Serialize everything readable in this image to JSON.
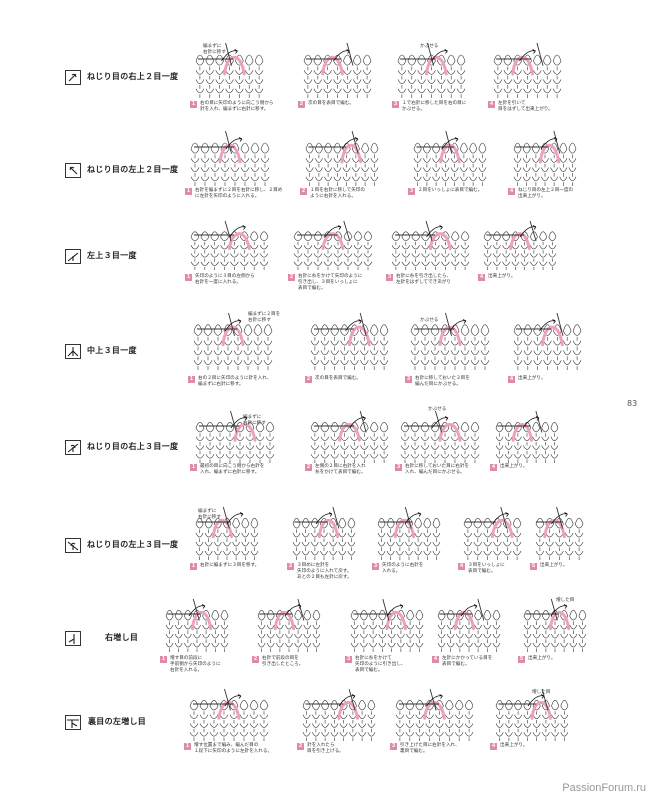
{
  "page_number": "83",
  "watermark": "PassionForum.ru",
  "colors": {
    "accent": "#e08aa9",
    "yarn_pink": "#ef9fc0",
    "line": "#333333"
  },
  "sections": [
    {
      "title": "ねじり目の右上２目一度",
      "symbol": "twisted-right-over-2-tog-symbol",
      "steps": [
        {
          "num": "1",
          "caption": "右の目に矢印のように向こう側から\n針を入れ、編まずに右針に移す。"
        },
        {
          "num": "2",
          "caption": "次の目を表目で編む。"
        },
        {
          "num": "3",
          "caption": "１で右針に移した目を右の目に\nかぶせる。"
        },
        {
          "num": "4",
          "caption": "左針を引いて\n目をはずして出来上がり。"
        }
      ],
      "labels": [
        "編まずに\n右針に移す",
        "かぶせる"
      ]
    },
    {
      "title": "ねじり目の左上２目一度",
      "symbol": "twisted-left-over-2-tog-symbol",
      "steps": [
        {
          "num": "1",
          "caption": "右針を編まずに２目を右針に移し、２目め\nに左針を矢印のように入れる。"
        },
        {
          "num": "2",
          "caption": "１目を右針に移して矢印の\nように右針を入れる。"
        },
        {
          "num": "3",
          "caption": "２目をいっしょに表目で編む。"
        },
        {
          "num": "4",
          "caption": "ねじり目の左上２目一度の\n出来上がり。"
        }
      ],
      "labels": []
    },
    {
      "title": "左上３目一度",
      "symbol": "left-over-3-tog-symbol",
      "steps": [
        {
          "num": "1",
          "caption": "矢印のように３目の左側から\n右針を一度に入れる。"
        },
        {
          "num": "2",
          "caption": "右針に糸をかけて矢印のように\n引き出し、３目をいっしょに\n表目で編む。"
        },
        {
          "num": "3",
          "caption": "右針に糸を引き出したら、\n左針をはずしてできあがり"
        },
        {
          "num": "4",
          "caption": "出来上がり。"
        }
      ],
      "labels": []
    },
    {
      "title": "中上３目一度",
      "symbol": "center-3-tog-symbol",
      "steps": [
        {
          "num": "1",
          "caption": "右の２目に矢印のように針を入れ、\n編まずに右針に移す。"
        },
        {
          "num": "2",
          "caption": "次の目を表目で編む。"
        },
        {
          "num": "3",
          "caption": "右針に移しておいた２目を\n編んだ目にかぶせる。"
        },
        {
          "num": "4",
          "caption": "出来上がり。"
        }
      ],
      "labels": [
        "編まずに２目を\n右針に移す",
        "かぶせる"
      ]
    },
    {
      "title": "ねじり目の右上３目一度",
      "symbol": "twisted-right-over-3-tog-symbol",
      "steps": [
        {
          "num": "1",
          "caption": "最初の目に向こう側から右針を\n入れ、編まずに右針に移す。"
        },
        {
          "num": "2",
          "caption": "左側の２目に右針を入れ\n糸をかけて表目で編む。"
        },
        {
          "num": "3",
          "caption": "右針に移しておいた目に右針を\n入れ、編んだ目にかぶせる。"
        },
        {
          "num": "4",
          "caption": "出来上がり。"
        }
      ],
      "labels": [
        "編まずに\n右針に移す",
        "かぶせる"
      ]
    },
    {
      "title": "ねじり目の左上３目一度",
      "symbol": "twisted-left-over-3-tog-symbol",
      "steps": [
        {
          "num": "1",
          "caption": "右針に編まずに３目を移す。"
        },
        {
          "num": "2",
          "caption": "３目めに左針を\n矢印のように入れて戻す。\nあとの２目も左針に戻す。"
        },
        {
          "num": "3",
          "caption": "矢印のように右針を\n入れる。"
        },
        {
          "num": "4",
          "caption": "３目をいっしょに\n表目で編む。"
        },
        {
          "num": "5",
          "caption": "出来上がり。"
        }
      ],
      "labels": [
        "編まずに\n右針に移す"
      ]
    },
    {
      "title": "右増し目",
      "symbol": "right-increase-symbol",
      "steps": [
        {
          "num": "1",
          "caption": "増す目の前段に\n手前側から矢印のように\n右針を入れる。"
        },
        {
          "num": "2",
          "caption": "右針で前段の目を\n引き出したところ。"
        },
        {
          "num": "3",
          "caption": "右針に糸をかけて\n矢印のように引き出し、\n表目で編む。"
        },
        {
          "num": "4",
          "caption": "左針にかかっている目を\n表目で編む。"
        },
        {
          "num": "5",
          "caption": "出来上がり。"
        }
      ],
      "labels": [
        "増した目"
      ]
    },
    {
      "title": "裏目の左増し目",
      "symbol": "purl-left-increase-symbol",
      "steps": [
        {
          "num": "1",
          "caption": "増す位置まで編み、編んだ目の\n１段下に矢印のように左針を入れる。"
        },
        {
          "num": "2",
          "caption": "針を入れたら\n目を引き上げる。"
        },
        {
          "num": "3",
          "caption": "引き上げた目に右針を入れ、\n裏目で編む。"
        },
        {
          "num": "4",
          "caption": "出来上がり。"
        }
      ],
      "labels": [
        "増した目"
      ]
    }
  ]
}
